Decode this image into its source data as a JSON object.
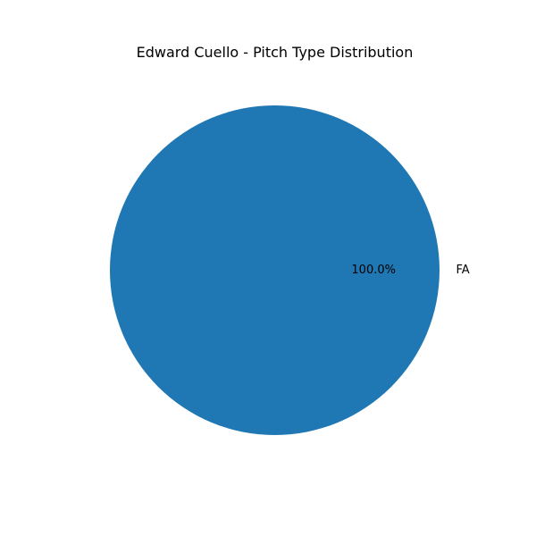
{
  "chart_data": {
    "type": "pie",
    "title": "Edward Cuello - Pitch Type Distribution",
    "categories": [
      "FA"
    ],
    "values": [
      100.0
    ],
    "percent_labels": [
      "100.0%"
    ],
    "colors": [
      "#1f77b4"
    ],
    "legend": "none"
  }
}
